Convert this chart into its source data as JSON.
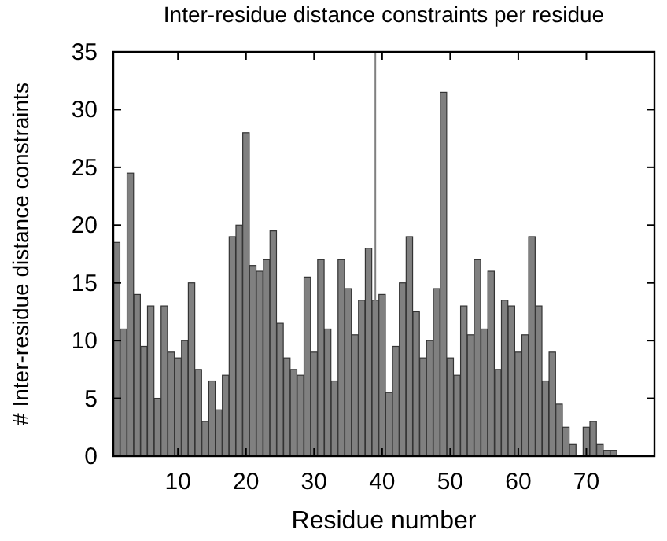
{
  "chart_data": {
    "type": "bar",
    "title": "Inter-residue distance constraints per residue",
    "xlabel": "Residue number",
    "ylabel": "# Inter-residue distance constraints",
    "x": [
      1,
      2,
      3,
      4,
      5,
      6,
      7,
      8,
      9,
      10,
      11,
      12,
      13,
      14,
      15,
      16,
      17,
      18,
      19,
      20,
      21,
      22,
      23,
      24,
      25,
      26,
      27,
      28,
      29,
      30,
      31,
      32,
      33,
      34,
      35,
      36,
      37,
      38,
      39,
      40,
      41,
      42,
      43,
      44,
      45,
      46,
      47,
      48,
      49,
      50,
      51,
      52,
      53,
      54,
      55,
      56,
      57,
      58,
      59,
      60,
      61,
      62,
      63,
      64,
      65,
      66,
      67,
      68,
      69,
      70,
      71,
      72,
      73,
      74
    ],
    "values": [
      18.5,
      11,
      24.5,
      14,
      9.5,
      13,
      5,
      13,
      9,
      8.5,
      10,
      15,
      7.5,
      3,
      6.5,
      4,
      7,
      19,
      20,
      28,
      16.5,
      16,
      17,
      19.5,
      11.5,
      8.5,
      7.5,
      7,
      15.5,
      9,
      17,
      11,
      6.5,
      17,
      14.5,
      10.5,
      13.5,
      18,
      13.5,
      14,
      5.5,
      9.5,
      15,
      19,
      12.5,
      8.5,
      10,
      14.5,
      31.5,
      8.5,
      7,
      13,
      10.5,
      17,
      11,
      16,
      7.5,
      13.5,
      13,
      9,
      10.5,
      19,
      13,
      6.5,
      9,
      4.5,
      2.5,
      1,
      0,
      2.5,
      3,
      1,
      0.5,
      0.5
    ],
    "color": "#808080",
    "xlim": [
      0.5,
      80
    ],
    "xticks": [
      10,
      20,
      30,
      40,
      50,
      60,
      70
    ],
    "ylim": [
      0,
      35
    ],
    "yticks": [
      0,
      5,
      10,
      15,
      20,
      25,
      30,
      35
    ],
    "grid": false,
    "ref_lines": [
      {
        "axis": "x",
        "value": 39,
        "color": "#808080"
      }
    ]
  }
}
